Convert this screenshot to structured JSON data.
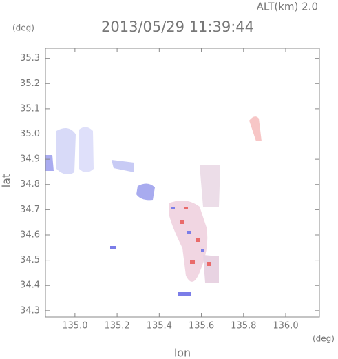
{
  "chart_data": {
    "type": "map",
    "title": "2013/05/29 11:39:44",
    "subtitle": "ALT(km) 2.0",
    "x_label": "lon",
    "y_label": "lat",
    "x_unit": "(deg)",
    "y_unit": "(deg)",
    "xlim": [
      134.86,
      136.16
    ],
    "ylim": [
      34.275,
      35.34
    ],
    "xticks": [
      {
        "value": 135.0,
        "label": "135.0"
      },
      135.2,
      135.4,
      135.6,
      135.8,
      {
        "value": 136.0,
        "label": "136.0"
      }
    ],
    "yticks": [
      34.3,
      34.4,
      34.5,
      34.6,
      34.7,
      34.8,
      34.9,
      {
        "value": 35.0,
        "label": "35.0"
      },
      35.1,
      35.2,
      35.3
    ]
  }
}
